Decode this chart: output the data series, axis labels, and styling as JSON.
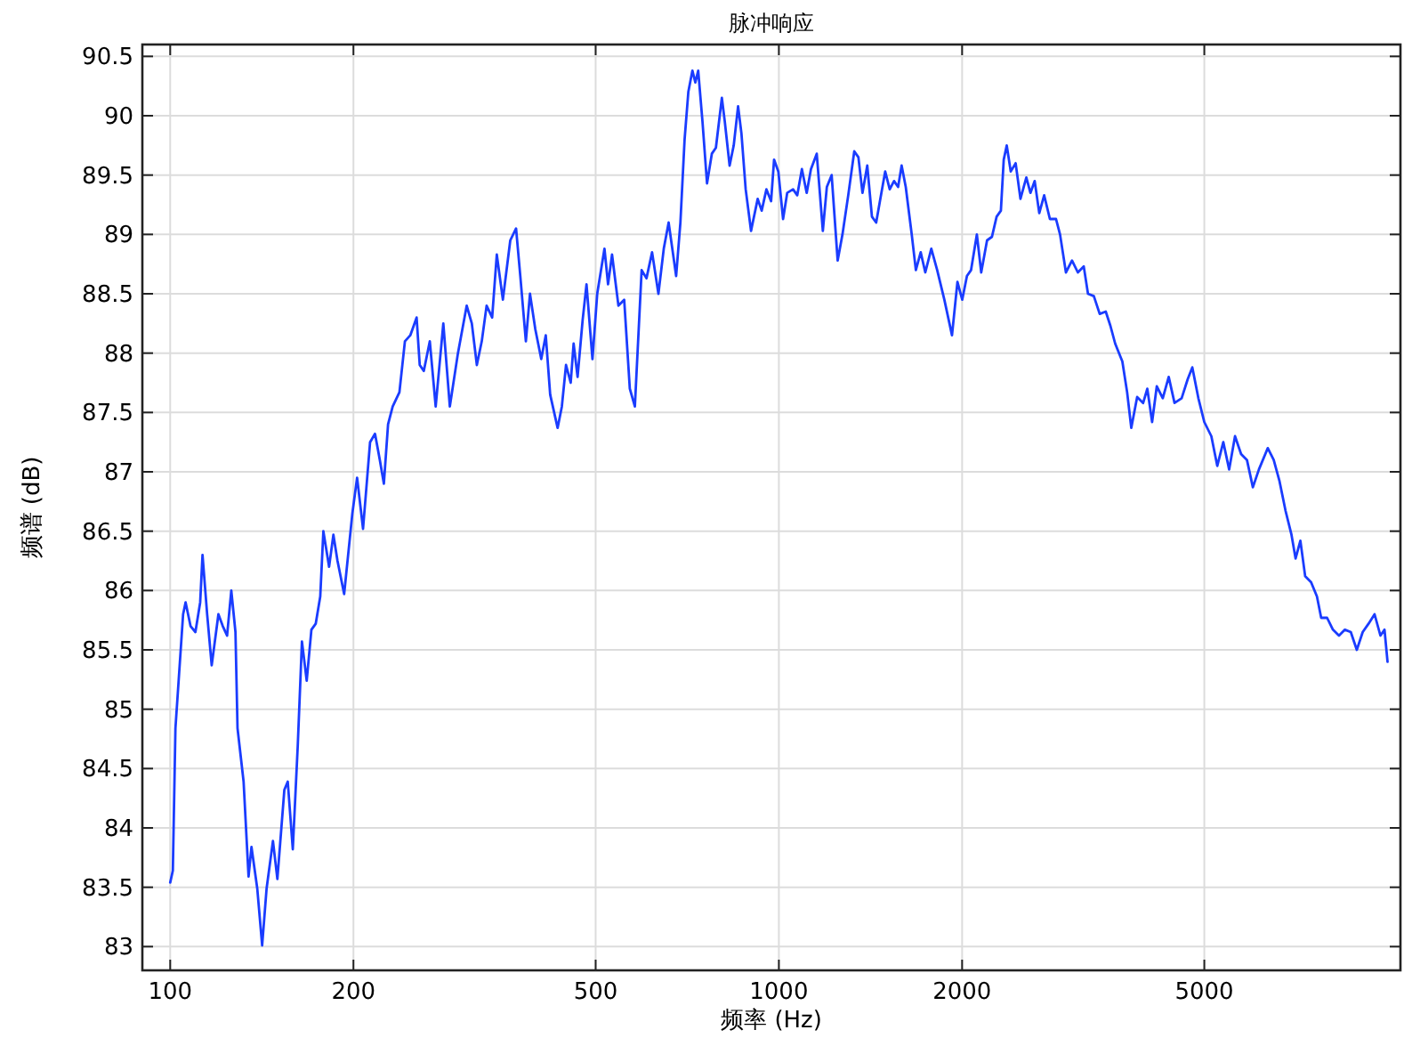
{
  "chart_data": {
    "type": "line",
    "title": "脉冲响应",
    "xlabel": "频率 (Hz)",
    "ylabel": "频谱 (dB)",
    "log": "x",
    "grid": true,
    "xlim": [
      90,
      10500
    ],
    "ylim": [
      82.8,
      90.6
    ],
    "xticks": [
      100,
      200,
      500,
      1000,
      2000,
      5000
    ],
    "yticks": [
      83,
      83.5,
      84,
      84.5,
      85,
      85.5,
      86,
      86.5,
      87,
      87.5,
      88,
      88.5,
      89,
      89.5,
      90,
      90.5
    ],
    "x": [
      100,
      101,
      102,
      105,
      106,
      108,
      110,
      112,
      113,
      115,
      117,
      120,
      122,
      124,
      126,
      128,
      129,
      132,
      134.5,
      136,
      139,
      141.6,
      144,
      147.5,
      150,
      154,
      156,
      159,
      162,
      164.6,
      167.6,
      170.6,
      173.4,
      176.4,
      178.5,
      182.4,
      185.4,
      188.3,
      193.1,
      199.2,
      202.8,
      207.4,
      213,
      217,
      221,
      224.4,
      228,
      232,
      238,
      243,
      248,
      254,
      257,
      261,
      267,
      273,
      281,
      288,
      297,
      307,
      313,
      319,
      325,
      331,
      338,
      344,
      352,
      362,
      370,
      376,
      384,
      390,
      398,
      407,
      414,
      421,
      433,
      440,
      447,
      455,
      460,
      467,
      476,
      483,
      494,
      503,
      517,
      524,
      532,
      545,
      557,
      569,
      580,
      595,
      606,
      619,
      634,
      647,
      659,
      678,
      689,
      700,
      710,
      721,
      729,
      737,
      749,
      762,
      776,
      788,
      806,
      815,
      830,
      843,
      857,
      868,
      882,
      900,
      923,
      937,
      954,
      971,
      982,
      998,
      1016,
      1032,
      1055,
      1072,
      1091,
      1111,
      1129,
      1154,
      1181,
      1199,
      1221,
      1249,
      1272,
      1300,
      1330,
      1351,
      1372,
      1397,
      1422,
      1445,
      1468,
      1495,
      1521,
      1546,
      1570,
      1591,
      1616,
      1653,
      1679,
      1710,
      1740,
      1780,
      1820,
      1870,
      1925,
      1965,
      2001,
      2037,
      2069,
      2115,
      2150,
      2198,
      2239,
      2279,
      2316,
      2341,
      2368,
      2404,
      2449,
      2494,
      2550,
      2590,
      2632,
      2678,
      2728,
      2788,
      2853,
      2897,
      2962,
      3031,
      3099,
      3169,
      3220,
      3292,
      3366,
      3444,
      3505,
      3569,
      3667,
      3734,
      3793,
      3878,
      3967,
      4030,
      4104,
      4177,
      4273,
      4370,
      4467,
      4589,
      4695,
      4778,
      4889,
      4999,
      5135,
      5251,
      5372,
      5493,
      5616,
      5746,
      5875,
      6008,
      6147,
      6357,
      6501,
      6646,
      6800,
      6953,
      7061,
      7191,
      7323,
      7488,
      7656,
      7780,
      7956,
      8134,
      8323,
      8510,
      8702,
      8902,
      9103,
      9306,
      9521,
      9735,
      9886,
      10000
    ],
    "series": [
      {
        "color": "#1a3cff",
        "values": [
          83.54,
          83.64,
          84.84,
          85.8,
          85.9,
          85.7,
          85.65,
          85.9,
          86.3,
          85.8,
          85.37,
          85.8,
          85.7,
          85.62,
          86.0,
          85.65,
          84.84,
          84.39,
          83.59,
          83.84,
          83.49,
          83.01,
          83.49,
          83.89,
          83.57,
          84.32,
          84.39,
          83.82,
          84.69,
          85.57,
          85.24,
          85.67,
          85.72,
          85.95,
          86.5,
          86.2,
          86.47,
          86.25,
          85.97,
          86.65,
          86.95,
          86.52,
          87.25,
          87.32,
          87.1,
          86.9,
          87.4,
          87.55,
          87.67,
          88.1,
          88.15,
          88.3,
          87.9,
          87.85,
          88.1,
          87.55,
          88.25,
          87.55,
          88.0,
          88.4,
          88.25,
          87.9,
          88.1,
          88.4,
          88.3,
          88.83,
          88.45,
          88.95,
          89.05,
          88.65,
          88.1,
          88.5,
          88.2,
          87.95,
          88.15,
          87.65,
          87.37,
          87.55,
          87.9,
          87.75,
          88.08,
          87.8,
          88.28,
          88.58,
          87.95,
          88.5,
          88.88,
          88.58,
          88.83,
          88.4,
          88.45,
          87.7,
          87.55,
          88.7,
          88.63,
          88.85,
          88.5,
          88.88,
          89.1,
          88.65,
          89.1,
          89.8,
          90.2,
          90.38,
          90.28,
          90.38,
          89.95,
          89.43,
          89.68,
          89.73,
          90.15,
          89.95,
          89.58,
          89.75,
          90.08,
          89.85,
          89.38,
          89.03,
          89.3,
          89.2,
          89.38,
          89.28,
          89.63,
          89.53,
          89.13,
          89.35,
          89.38,
          89.33,
          89.55,
          89.35,
          89.55,
          89.68,
          89.03,
          89.4,
          89.5,
          88.78,
          89.0,
          89.33,
          89.7,
          89.65,
          89.35,
          89.58,
          89.15,
          89.1,
          89.3,
          89.53,
          89.38,
          89.45,
          89.4,
          89.58,
          89.4,
          89.0,
          88.7,
          88.85,
          88.68,
          88.88,
          88.7,
          88.45,
          88.15,
          88.6,
          88.45,
          88.65,
          88.7,
          89.0,
          88.68,
          88.95,
          88.98,
          89.15,
          89.2,
          89.63,
          89.75,
          89.53,
          89.6,
          89.3,
          89.48,
          89.35,
          89.45,
          89.18,
          89.33,
          89.13,
          89.13,
          89.0,
          88.68,
          88.78,
          88.68,
          88.73,
          88.5,
          88.48,
          88.33,
          88.35,
          88.23,
          88.08,
          87.93,
          87.67,
          87.37,
          87.63,
          87.58,
          87.7,
          87.42,
          87.72,
          87.62,
          87.8,
          87.58,
          87.62,
          87.78,
          87.88,
          87.62,
          87.42,
          87.3,
          87.05,
          87.25,
          87.02,
          87.3,
          87.15,
          87.1,
          86.87,
          87.02,
          87.2,
          87.1,
          86.92,
          86.67,
          86.47,
          86.27,
          86.42,
          86.12,
          86.07,
          85.95,
          85.77,
          85.77,
          85.67,
          85.62,
          85.67,
          85.65,
          85.5,
          85.65,
          85.72,
          85.8,
          85.62,
          85.67,
          85.4
        ]
      }
    ]
  }
}
